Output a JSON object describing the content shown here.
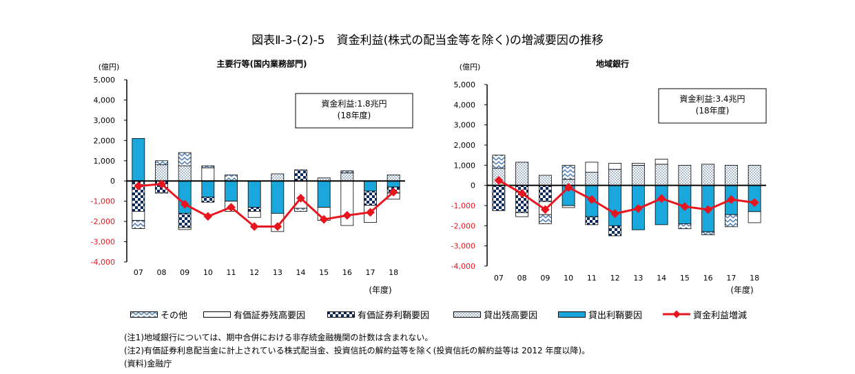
{
  "page_title": "図表Ⅱ-3-(2)-5　資金利益(株式の配当金等を除く)の増減要因の推移",
  "legend": [
    {
      "key": "other",
      "label": "その他"
    },
    {
      "key": "sec_bal",
      "label": "有価証券残高要因"
    },
    {
      "key": "sec_spread",
      "label": "有価証券利鞘要因"
    },
    {
      "key": "loan_bal",
      "label": "貸出残高要因"
    },
    {
      "key": "loan_spread",
      "label": "貸出利鞘要因"
    },
    {
      "key": "net",
      "label": "資金利益増減"
    }
  ],
  "notes": [
    "(注1)地域銀行については、期中合併における非存続金融機関の計数は含まれない。",
    "(注2)有価証券利息配当金に計上されている株式配当金、投資信託の解約益等を除く(投資信託の解約益等は 2012 年度以降)。",
    "(資料)金融庁"
  ],
  "colors": {
    "net_line": "#e8141e",
    "loan_spread": "#1aa7dc",
    "sec_spread": "#0d2a5c",
    "loan_bal": "#9ab4cf",
    "other": "#7fa3c8"
  },
  "chart_data": [
    {
      "type": "bar",
      "stacked": true,
      "title": "主要行等(国内業務部門)",
      "unit_label": "(億円)",
      "xlabel": "(年度)",
      "categories": [
        "07",
        "08",
        "09",
        "10",
        "11",
        "12",
        "13",
        "14",
        "15",
        "16",
        "17",
        "18"
      ],
      "ylim": [
        -4000,
        5000
      ],
      "yticks": [
        -4000,
        -3000,
        -2000,
        -1000,
        0,
        1000,
        2000,
        3000,
        4000,
        5000
      ],
      "ytick_labels": [
        "-4,000",
        "-3,000",
        "-2,000",
        "-1,000",
        "0",
        "1,000",
        "2,000",
        "3,000",
        "4,000",
        "5,000"
      ],
      "annotation": [
        "資金利益:1.8兆円",
        "(18年度)"
      ],
      "series": [
        {
          "key": "loan_spread",
          "name": "貸出利鞘要因",
          "values": [
            2100,
            0,
            -1600,
            -800,
            -1000,
            -1300,
            -1600,
            0,
            -1300,
            0,
            -500,
            -300
          ]
        },
        {
          "key": "loan_bal",
          "name": "貸出残高要因",
          "values": [
            0,
            800,
            750,
            0,
            0,
            0,
            350,
            0,
            150,
            400,
            0,
            300
          ]
        },
        {
          "key": "sec_spread",
          "name": "有価証券利鞘要因",
          "values": [
            -1500,
            -600,
            -700,
            -250,
            0,
            -200,
            0,
            550,
            0,
            0,
            -700,
            -300
          ]
        },
        {
          "key": "sec_bal",
          "name": "有価証券残高要因",
          "values": [
            -450,
            0,
            -100,
            650,
            -500,
            -300,
            -900,
            -1350,
            -650,
            -2200,
            -850,
            -300
          ]
        },
        {
          "key": "other",
          "name": "その他",
          "values": [
            -400,
            200,
            650,
            100,
            300,
            0,
            0,
            -150,
            0,
            100,
            0,
            0
          ]
        }
      ],
      "net": [
        -250,
        -150,
        -1150,
        -1750,
        -1300,
        -2250,
        -2250,
        -850,
        -1900,
        -1700,
        -1550,
        -550
      ]
    },
    {
      "type": "bar",
      "stacked": true,
      "title": "地域銀行",
      "unit_label": "(億円)",
      "xlabel": "(年度)",
      "categories": [
        "07",
        "08",
        "09",
        "10",
        "11",
        "12",
        "13",
        "14",
        "15",
        "16",
        "17",
        "18"
      ],
      "ylim": [
        -4000,
        5000
      ],
      "yticks": [
        -4000,
        -3000,
        -2000,
        -1000,
        0,
        1000,
        2000,
        3000,
        4000,
        5000
      ],
      "ytick_labels": [
        "-4,000",
        "-3,000",
        "-2,000",
        "-1,000",
        "0",
        "1,000",
        "2,000",
        "3,000",
        "4,000",
        "5,000"
      ],
      "annotation": [
        "資金利益:3.4兆円",
        "(18年度)"
      ],
      "series": [
        {
          "key": "loan_spread",
          "name": "貸出利鞘要因",
          "values": [
            0,
            0,
            0,
            -1000,
            -1550,
            -2000,
            -2200,
            -1950,
            -1900,
            -2300,
            -1450,
            -1300
          ]
        },
        {
          "key": "loan_bal",
          "name": "貸出残高要因",
          "values": [
            850,
            1150,
            500,
            300,
            650,
            800,
            1000,
            1050,
            1000,
            1050,
            1000,
            1000
          ]
        },
        {
          "key": "sec_spread",
          "name": "有価証券利鞘要因",
          "values": [
            -1250,
            -1350,
            -800,
            0,
            -400,
            -500,
            0,
            0,
            0,
            0,
            0,
            0
          ]
        },
        {
          "key": "sec_bal",
          "name": "有価証券残高要因",
          "values": [
            0,
            -200,
            -650,
            -100,
            500,
            300,
            100,
            250,
            0,
            0,
            0,
            -550
          ]
        },
        {
          "key": "other",
          "name": "その他",
          "values": [
            650,
            0,
            -450,
            700,
            0,
            0,
            0,
            0,
            -250,
            -150,
            -600,
            0
          ]
        }
      ],
      "net": [
        250,
        -400,
        -1200,
        -100,
        -700,
        -1400,
        -1150,
        -650,
        -1050,
        -1200,
        -700,
        -850
      ]
    }
  ]
}
